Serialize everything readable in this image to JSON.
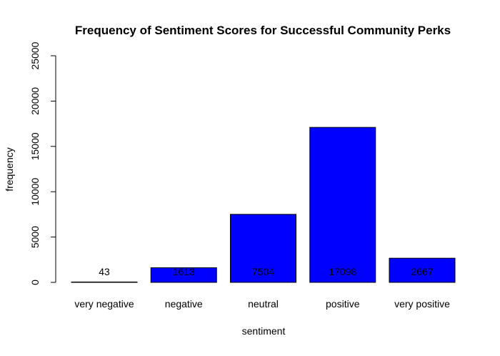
{
  "chart_data": {
    "type": "bar",
    "title": "Frequency of Sentiment Scores for Successful Community Perks",
    "xlabel": "sentiment",
    "ylabel": "frequency",
    "categories": [
      "very negative",
      "negative",
      "neutral",
      "positive",
      "very positive"
    ],
    "values": [
      43,
      1613,
      7504,
      17098,
      2667
    ],
    "data_labels": [
      "43",
      "1613",
      "7504",
      "17098",
      "2667"
    ],
    "ylim": [
      0,
      25000
    ],
    "yticks": [
      0,
      5000,
      10000,
      15000,
      20000,
      25000
    ],
    "ytick_labels": [
      "0",
      "5000",
      "10000",
      "15000",
      "20000",
      "25000"
    ],
    "bar_color": "#0000ff",
    "bar_border_color": "#000000",
    "grid": false
  }
}
